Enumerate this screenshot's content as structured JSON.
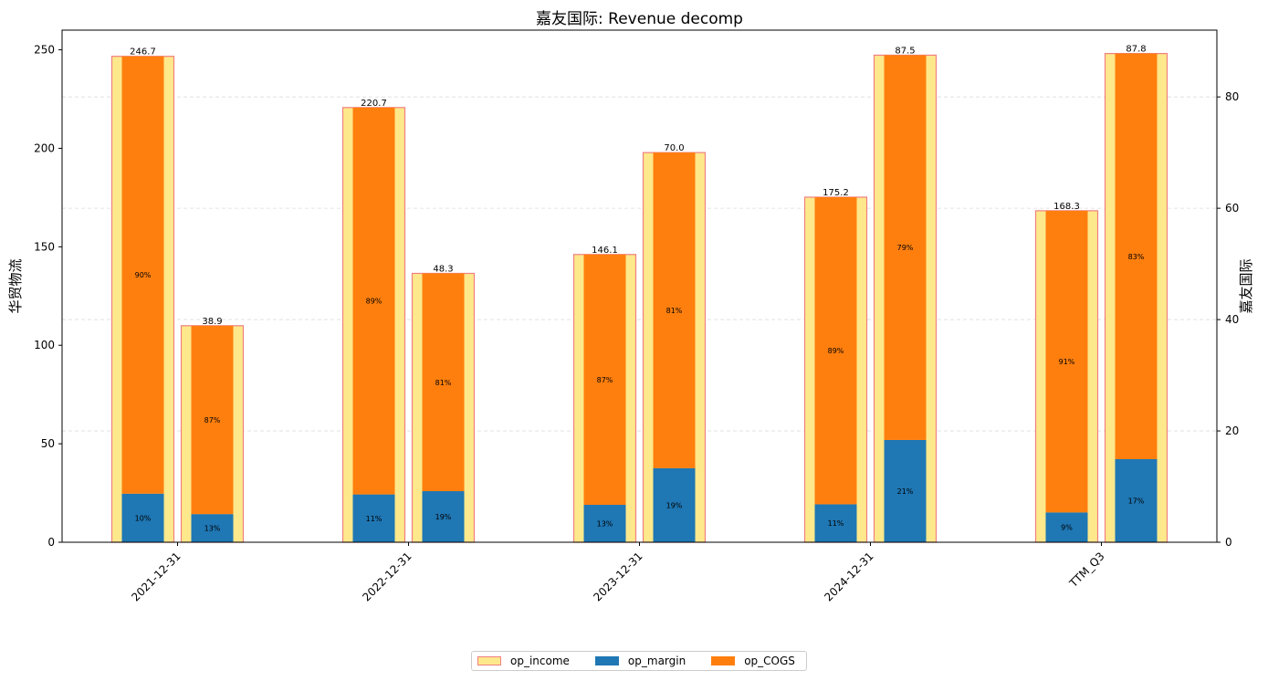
{
  "chart_data": {
    "type": "bar",
    "title": "嘉友国际: Revenue decomp",
    "categories": [
      "2021-12-31",
      "2022-12-31",
      "2023-12-31",
      "2024-12-31",
      "TTM_Q3"
    ],
    "left_axis": {
      "label": "华贸物流",
      "ylim": [
        0,
        260
      ],
      "ticks": [
        0,
        50,
        100,
        150,
        200,
        250
      ]
    },
    "right_axis": {
      "label": "嘉友国际",
      "ylim": [
        0,
        92
      ],
      "ticks": [
        0,
        20,
        40,
        60,
        80
      ]
    },
    "legend_position": "bottom-center",
    "grid": "horizontal dashed",
    "colors": {
      "op_income_fill": "#fde88b",
      "op_income_edge": "#f08080",
      "op_margin": "#1f77b4",
      "op_COGS": "#ff7f0e"
    },
    "legend": [
      "op_income",
      "op_margin",
      "op_COGS"
    ],
    "groups": [
      {
        "company": "华贸物流",
        "axis": "left",
        "totals": [
          246.7,
          220.7,
          146.1,
          175.2,
          168.3
        ],
        "total_labels": [
          "246.7",
          "220.7",
          "146.1",
          "175.2",
          "168.3"
        ],
        "margin_pct": [
          10,
          11,
          13,
          11,
          9
        ],
        "margin_labels": [
          "10%",
          "11%",
          "13%",
          "11%",
          "9%"
        ],
        "cogs_pct": [
          90,
          89,
          87,
          89,
          91
        ],
        "cogs_labels": [
          "90%",
          "89%",
          "87%",
          "89%",
          "91%"
        ]
      },
      {
        "company": "嘉友国际",
        "axis": "right",
        "totals": [
          38.9,
          48.3,
          70.0,
          87.5,
          87.8
        ],
        "total_labels": [
          "38.9",
          "48.3",
          "70.0",
          "87.5",
          "87.8"
        ],
        "margin_pct": [
          13,
          19,
          19,
          21,
          17
        ],
        "margin_labels": [
          "13%",
          "19%",
          "19%",
          "21%",
          "17%"
        ],
        "cogs_pct": [
          87,
          81,
          81,
          79,
          83
        ],
        "cogs_labels": [
          "87%",
          "81%",
          "81%",
          "79%",
          "83%"
        ]
      }
    ]
  }
}
